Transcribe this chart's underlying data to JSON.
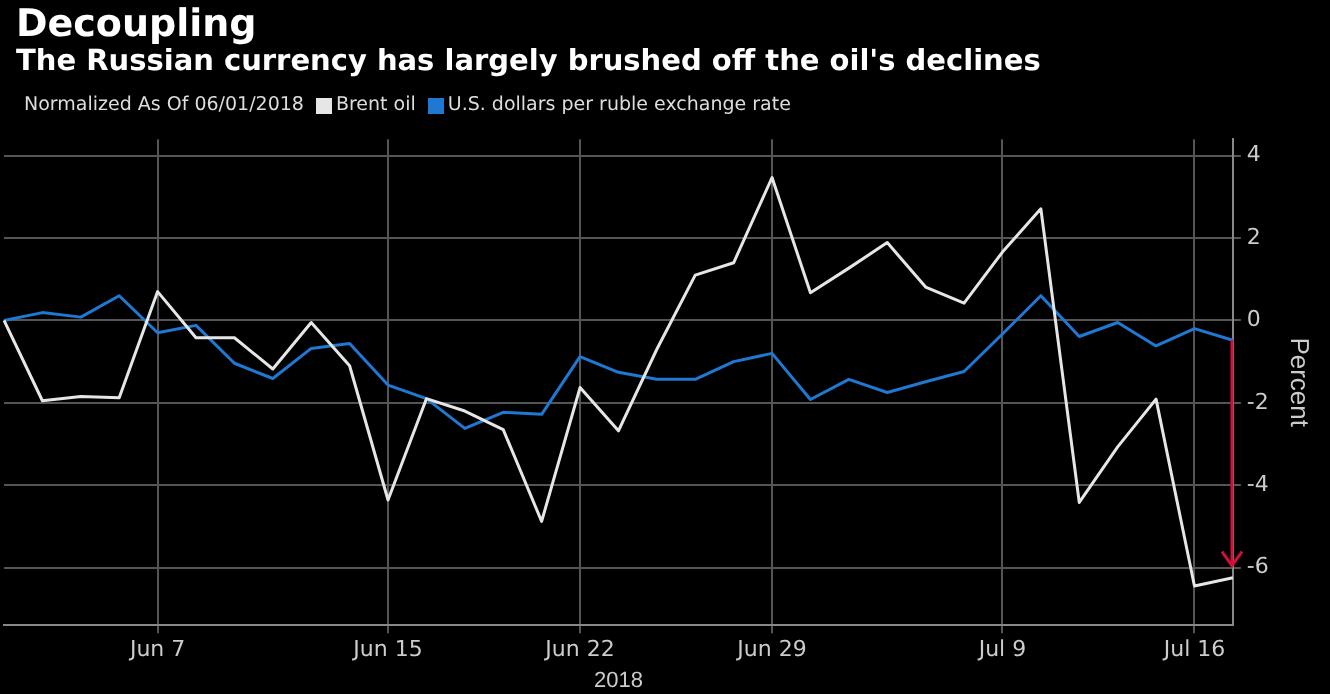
{
  "chart_data": {
    "type": "line",
    "title": "Decoupling",
    "subtitle": "The Russian currency has largely brushed off the oil's declines",
    "legend_title": "Normalized As Of 06/01/2018",
    "legend": "top left",
    "xlabel": "2018",
    "ylabel": "Percent",
    "grid": true,
    "marker": "none",
    "line_style": "solid",
    "categories": [
      null,
      null,
      null,
      null,
      "Jun 7",
      null,
      null,
      null,
      null,
      null,
      "Jun 15",
      null,
      null,
      null,
      null,
      "Jun 22",
      null,
      null,
      null,
      null,
      "Jun 29",
      null,
      null,
      null,
      null,
      null,
      "Jul 9",
      null,
      null,
      null,
      null,
      "Jul 16",
      null
    ],
    "ylim": [
      -7.4,
      4.4
    ],
    "yticks": [
      -6,
      -4,
      -2,
      0,
      2,
      4
    ],
    "series": [
      {
        "name": "Brent oil",
        "color": "#e6e6e6",
        "values": [
          0,
          -1.95,
          -1.85,
          -1.88,
          0.7,
          -0.42,
          -0.42,
          -1.18,
          -0.05,
          -1.1,
          -4.36,
          -1.9,
          -2.2,
          -2.65,
          -4.88,
          -1.63,
          -2.68,
          -0.7,
          1.1,
          1.4,
          3.47,
          0.67,
          1.27,
          1.89,
          0.81,
          0.42,
          1.66,
          2.71,
          -4.42,
          -3.07,
          -1.91,
          -6.45,
          -6.25
        ]
      },
      {
        "name": "U.S. dollars per ruble exchange rate",
        "color": "#1f78d1",
        "values": [
          0,
          0.19,
          0.08,
          0.6,
          -0.3,
          -0.12,
          -1.04,
          -1.41,
          -0.68,
          -0.56,
          -1.57,
          -1.9,
          -2.62,
          -2.23,
          -2.28,
          -0.88,
          -1.26,
          -1.43,
          -1.43,
          -1.0,
          -0.8,
          -1.92,
          -1.43,
          -1.75,
          -1.49,
          -1.24,
          -0.33,
          0.6,
          -0.39,
          -0.05,
          -0.62,
          -0.2,
          -0.48
        ]
      }
    ]
  }
}
